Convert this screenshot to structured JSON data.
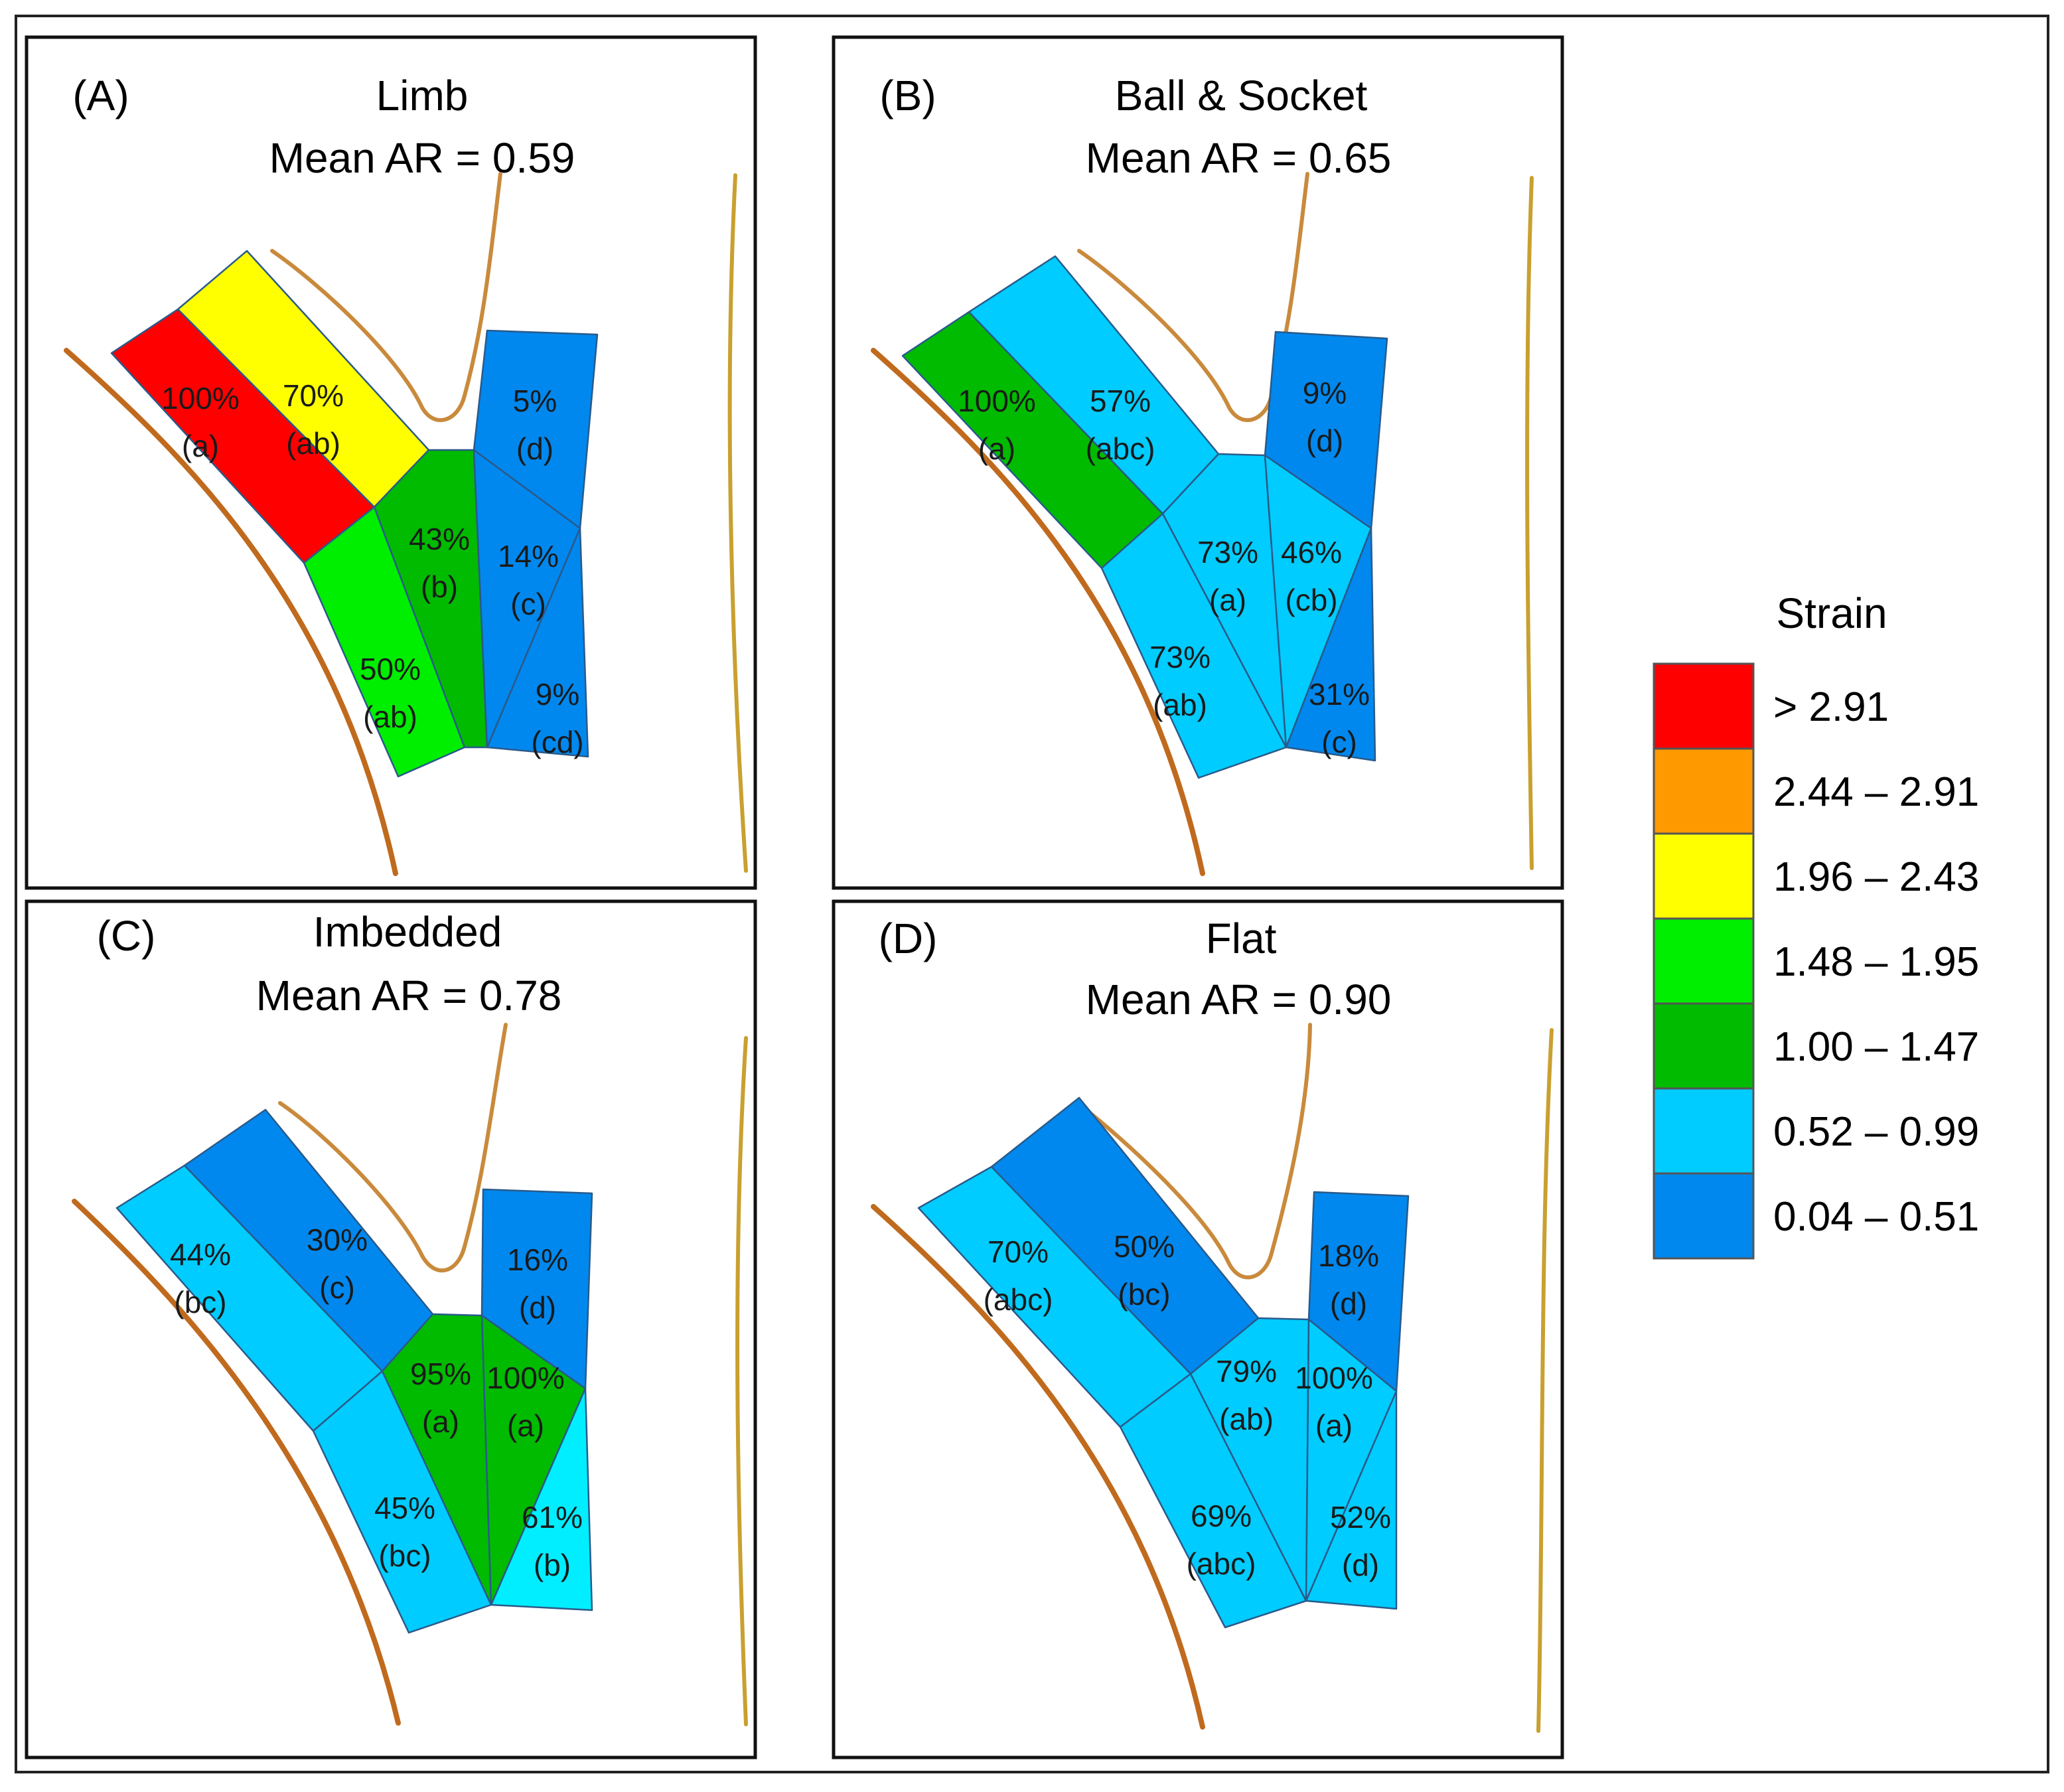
{
  "legend": {
    "title": "Strain",
    "items": [
      {
        "label": "> 2.91",
        "color": "#ff0000"
      },
      {
        "label": "2.44 – 2.91",
        "color": "#ff9900"
      },
      {
        "label": "1.96 – 2.43",
        "color": "#ffff00"
      },
      {
        "label": "1.48 – 1.95",
        "color": "#00ee00"
      },
      {
        "label": "1.00 – 1.47",
        "color": "#00bb00"
      },
      {
        "label": "0.52 – 0.99",
        "color": "#00ccff"
      },
      {
        "label": "0.04 – 0.51",
        "color": "#0088ee"
      }
    ]
  },
  "panels": [
    {
      "letter": "(A)",
      "name": "Limb",
      "mean_ar": "Mean AR = 0.59",
      "regions": [
        {
          "pct": "100%",
          "grp": "(a)",
          "color": "#ff0000"
        },
        {
          "pct": "70%",
          "grp": "(ab)",
          "color": "#ffff00"
        },
        {
          "pct": "50%",
          "grp": "(ab)",
          "color": "#00ee00"
        },
        {
          "pct": "43%",
          "grp": "(b)",
          "color": "#00bb00"
        },
        {
          "pct": "5%",
          "grp": "(d)",
          "color": "#0088ee"
        },
        {
          "pct": "14%",
          "grp": "(c)",
          "color": "#0088ee"
        },
        {
          "pct": "9%",
          "grp": "(cd)",
          "color": "#0088ee"
        }
      ]
    },
    {
      "letter": "(B)",
      "name": "Ball & Socket",
      "mean_ar": "Mean AR = 0.65",
      "regions": [
        {
          "pct": "100%",
          "grp": "(a)",
          "color": "#00bb00"
        },
        {
          "pct": "57%",
          "grp": "(abc)",
          "color": "#00ccff"
        },
        {
          "pct": "73%",
          "grp": "(ab)",
          "color": "#00ccff"
        },
        {
          "pct": "73%",
          "grp": "(a)",
          "color": "#00ccff"
        },
        {
          "pct": "9%",
          "grp": "(d)",
          "color": "#0088ee"
        },
        {
          "pct": "46%",
          "grp": "(cb)",
          "color": "#00ccff"
        },
        {
          "pct": "31%",
          "grp": "(c)",
          "color": "#0088ee"
        }
      ]
    },
    {
      "letter": "(C)",
      "name": "Imbedded",
      "mean_ar": "Mean AR = 0.78",
      "regions": [
        {
          "pct": "44%",
          "grp": "(bc)",
          "color": "#00ccff"
        },
        {
          "pct": "30%",
          "grp": "(c)",
          "color": "#0088ee"
        },
        {
          "pct": "45%",
          "grp": "(bc)",
          "color": "#00ccff"
        },
        {
          "pct": "95%",
          "grp": "(a)",
          "color": "#00bb00"
        },
        {
          "pct": "16%",
          "grp": "(d)",
          "color": "#0088ee"
        },
        {
          "pct": "100%",
          "grp": "(a)",
          "color": "#00bb00"
        },
        {
          "pct": "61%",
          "grp": "(b)",
          "color": "#00eeff"
        }
      ]
    },
    {
      "letter": "(D)",
      "name": "Flat",
      "mean_ar": "Mean AR = 0.90",
      "regions": [
        {
          "pct": "70%",
          "grp": "(abc)",
          "color": "#00ccff"
        },
        {
          "pct": "50%",
          "grp": "(bc)",
          "color": "#0088ee"
        },
        {
          "pct": "69%",
          "grp": "(abc)",
          "color": "#00ccff"
        },
        {
          "pct": "79%",
          "grp": "(ab)",
          "color": "#00ccff"
        },
        {
          "pct": "18%",
          "grp": "(d)",
          "color": "#0088ee"
        },
        {
          "pct": "100%",
          "grp": "(a)",
          "color": "#00ccff"
        },
        {
          "pct": "52%",
          "grp": "(d)",
          "color": "#00ccff"
        }
      ]
    }
  ]
}
